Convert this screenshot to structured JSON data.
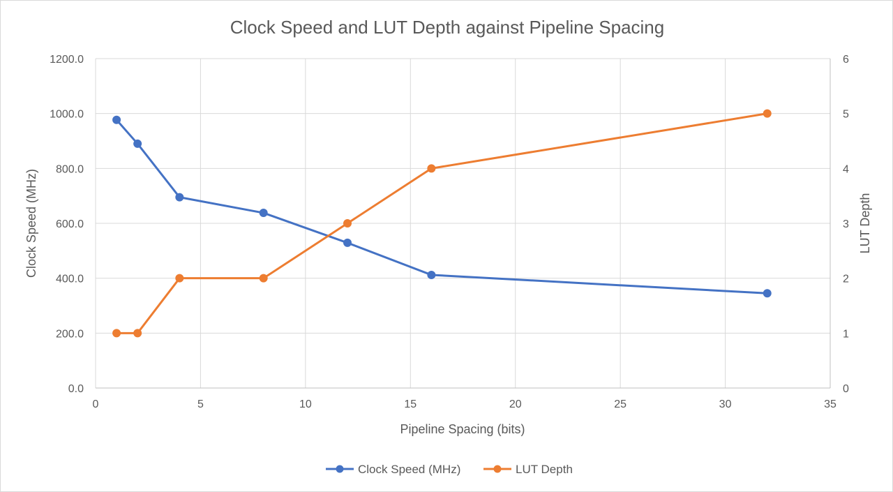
{
  "chart_data": {
    "type": "line",
    "title": "Clock Speed and LUT Depth against Pipeline Spacing",
    "xlabel": "Pipeline Spacing (bits)",
    "ylabel": "Clock Speed (MHz)",
    "y2label": "LUT Depth",
    "xlim": [
      0,
      35
    ],
    "ylim": [
      0,
      1200
    ],
    "y2lim": [
      0,
      6
    ],
    "x_ticks": [
      "0",
      "5",
      "10",
      "15",
      "20",
      "25",
      "30",
      "35"
    ],
    "y_ticks": [
      "0.0",
      "200.0",
      "400.0",
      "600.0",
      "800.0",
      "1000.0",
      "1200.0"
    ],
    "y2_ticks": [
      "0",
      "1",
      "2",
      "3",
      "4",
      "5",
      "6"
    ],
    "grid": true,
    "legend_position": "bottom",
    "series": [
      {
        "name": "Clock Speed (MHz)",
        "axis": "left",
        "color": "#4472c4",
        "x": [
          1,
          2,
          4,
          8,
          12,
          16,
          32
        ],
        "y": [
          977,
          890,
          695,
          638,
          529,
          412,
          345
        ]
      },
      {
        "name": "LUT Depth",
        "axis": "right",
        "color": "#ed7d31",
        "x": [
          1,
          2,
          4,
          8,
          12,
          16,
          32
        ],
        "y": [
          1,
          1,
          2,
          2,
          3,
          4,
          5
        ]
      }
    ]
  }
}
